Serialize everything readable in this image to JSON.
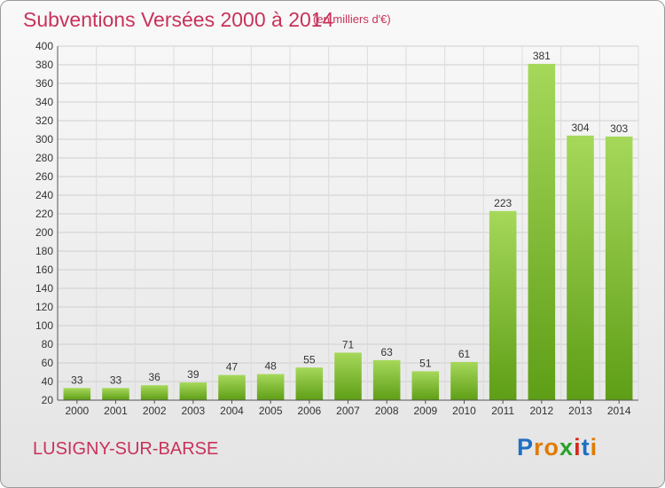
{
  "header": {
    "title": "Subventions Versées 2000 à 2014",
    "subtitle": "(en milliers d'€)"
  },
  "footer": {
    "commune": "LUSIGNY-SUR-BARSE",
    "logo_letters": [
      "P",
      "r",
      "o",
      "x",
      "i",
      "t",
      "i"
    ],
    "logo_colors": [
      "#1e6fc2",
      "#e07b00",
      "#e07b00",
      "#2aa12a",
      "#d4281e",
      "#1e6fc2",
      "#e07b00"
    ]
  },
  "colors": {
    "title": "#c8325a",
    "bar_light": "#a6d85a",
    "bar_dark": "#5e9e16"
  },
  "chart_data": {
    "type": "bar",
    "title": "Subventions Versées 2000 à 2014",
    "subtitle": "(en milliers d'€)",
    "xlabel": "",
    "ylabel": "",
    "categories": [
      "2000",
      "2001",
      "2002",
      "2003",
      "2004",
      "2005",
      "2006",
      "2007",
      "2008",
      "2009",
      "2010",
      "2011",
      "2012",
      "2013",
      "2014"
    ],
    "values": [
      33,
      33,
      36,
      39,
      47,
      48,
      55,
      71,
      63,
      51,
      61,
      223,
      381,
      304,
      303
    ],
    "ylim": [
      20,
      400
    ],
    "yticks": [
      20,
      40,
      60,
      80,
      100,
      120,
      140,
      160,
      180,
      200,
      220,
      240,
      260,
      280,
      300,
      320,
      340,
      360,
      380,
      400
    ],
    "grid": true,
    "legend": "none"
  }
}
